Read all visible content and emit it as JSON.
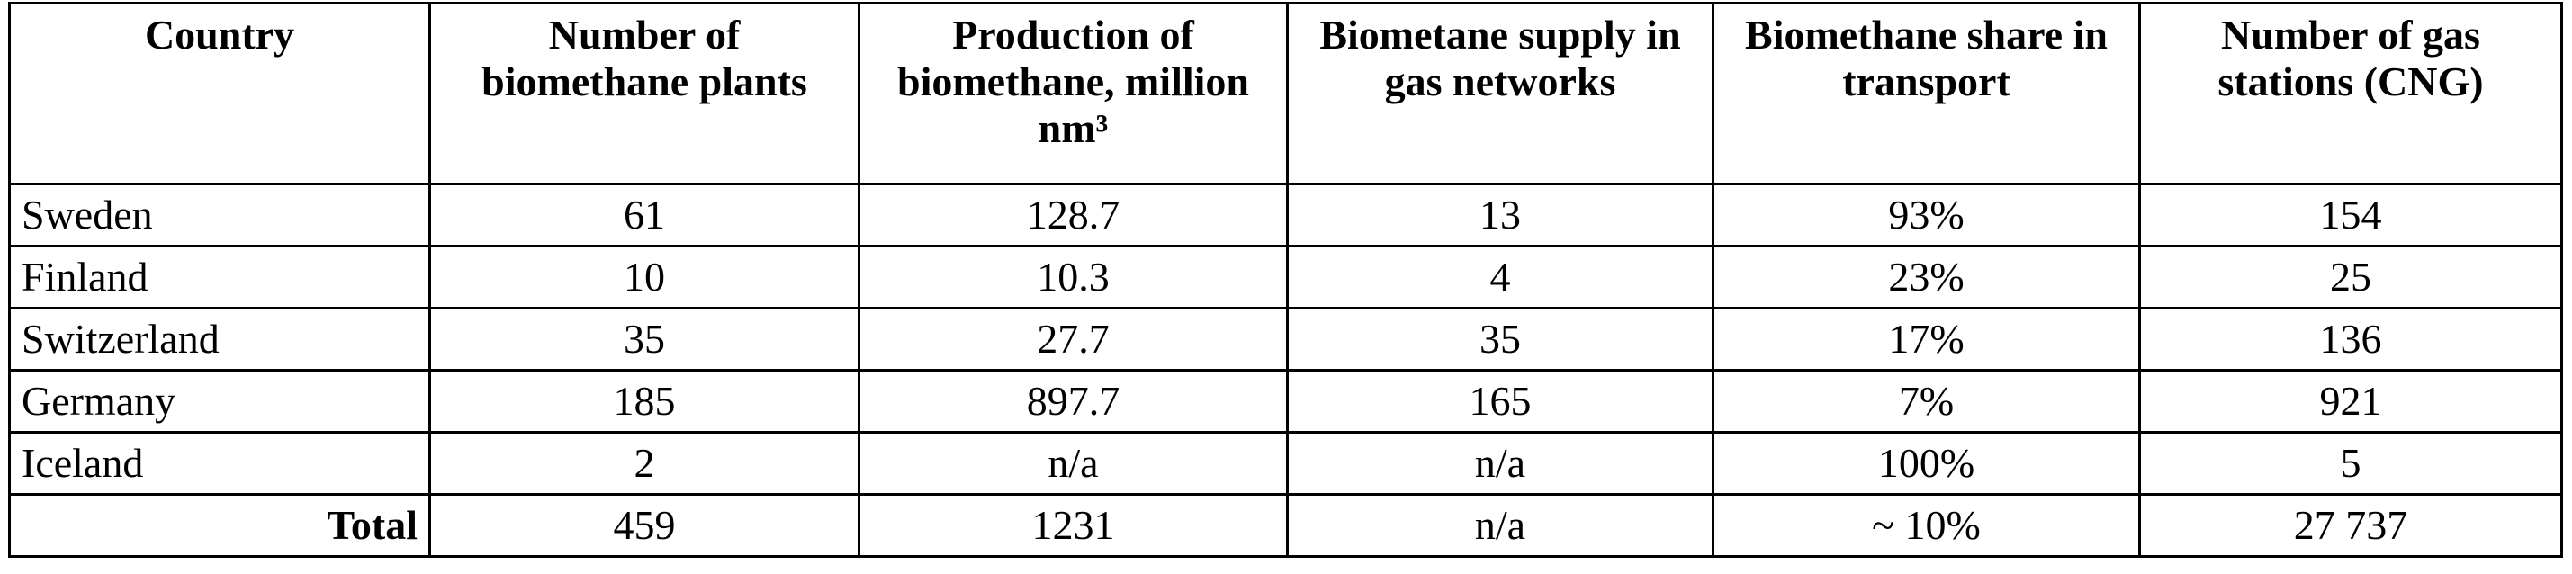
{
  "table": {
    "header": [
      "Country",
      "Number of biomethane plants",
      "Production of biomethane, million nm³",
      "Biometane supply in gas networks",
      "Biomethane share in transport",
      "Number of gas stations (CNG)"
    ],
    "rows": [
      [
        "Sweden",
        "61",
        "128.7",
        "13",
        "93%",
        "154"
      ],
      [
        "Finland",
        "10",
        "10.3",
        "4",
        "23%",
        "25"
      ],
      [
        "Switzerland",
        "35",
        "27.7",
        "35",
        "17%",
        "136"
      ],
      [
        "Germany",
        "185",
        "897.7",
        "165",
        "7%",
        "921"
      ],
      [
        "Iceland",
        "2",
        "n/a",
        "n/a",
        "100%",
        "5"
      ],
      [
        "Total",
        "459",
        "1231",
        "n/a",
        "~ 10%",
        "27 737"
      ]
    ]
  }
}
